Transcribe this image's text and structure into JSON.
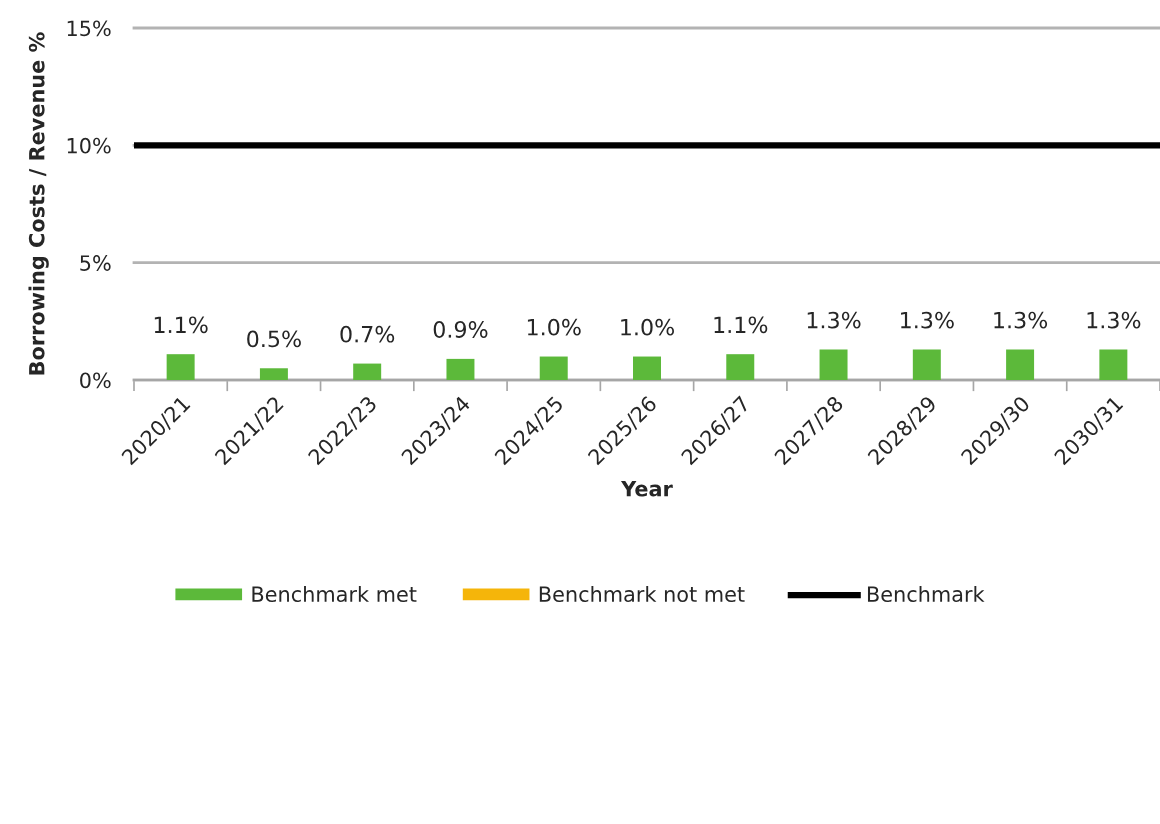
{
  "chart_data": {
    "type": "bar",
    "xlabel": "Year",
    "ylabel": "Borrowing Costs / Revenue %",
    "categories": [
      "2020/21",
      "2021/22",
      "2022/23",
      "2023/24",
      "2024/25",
      "2025/26",
      "2026/27",
      "2027/28",
      "2028/29",
      "2029/30",
      "2030/31"
    ],
    "series": [
      {
        "name": "Benchmark met",
        "color": "#5cb93a",
        "values": [
          1.1,
          0.5,
          0.7,
          0.9,
          1.0,
          1.0,
          1.1,
          1.3,
          1.3,
          1.3,
          1.3
        ],
        "value_labels": [
          "1.1%",
          "0.5%",
          "0.7%",
          "0.9%",
          "1.0%",
          "1.0%",
          "1.1%",
          "1.3%",
          "1.3%",
          "1.3%",
          "1.3%"
        ]
      },
      {
        "name": "Benchmark not met",
        "color": "#f5b50a",
        "values": [
          null,
          null,
          null,
          null,
          null,
          null,
          null,
          null,
          null,
          null,
          null
        ]
      }
    ],
    "stacked": true,
    "ylim": [
      0,
      15
    ],
    "yticks": [
      {
        "value": 0,
        "label": "0%"
      },
      {
        "value": 5,
        "label": "5%"
      },
      {
        "value": 10,
        "label": "10%"
      },
      {
        "value": 15,
        "label": "15%"
      }
    ],
    "ref_lines": [
      {
        "axis": "y",
        "value": 10,
        "label": "Benchmark",
        "color": "#000000"
      }
    ],
    "grid": "y",
    "legend": "bottom"
  }
}
